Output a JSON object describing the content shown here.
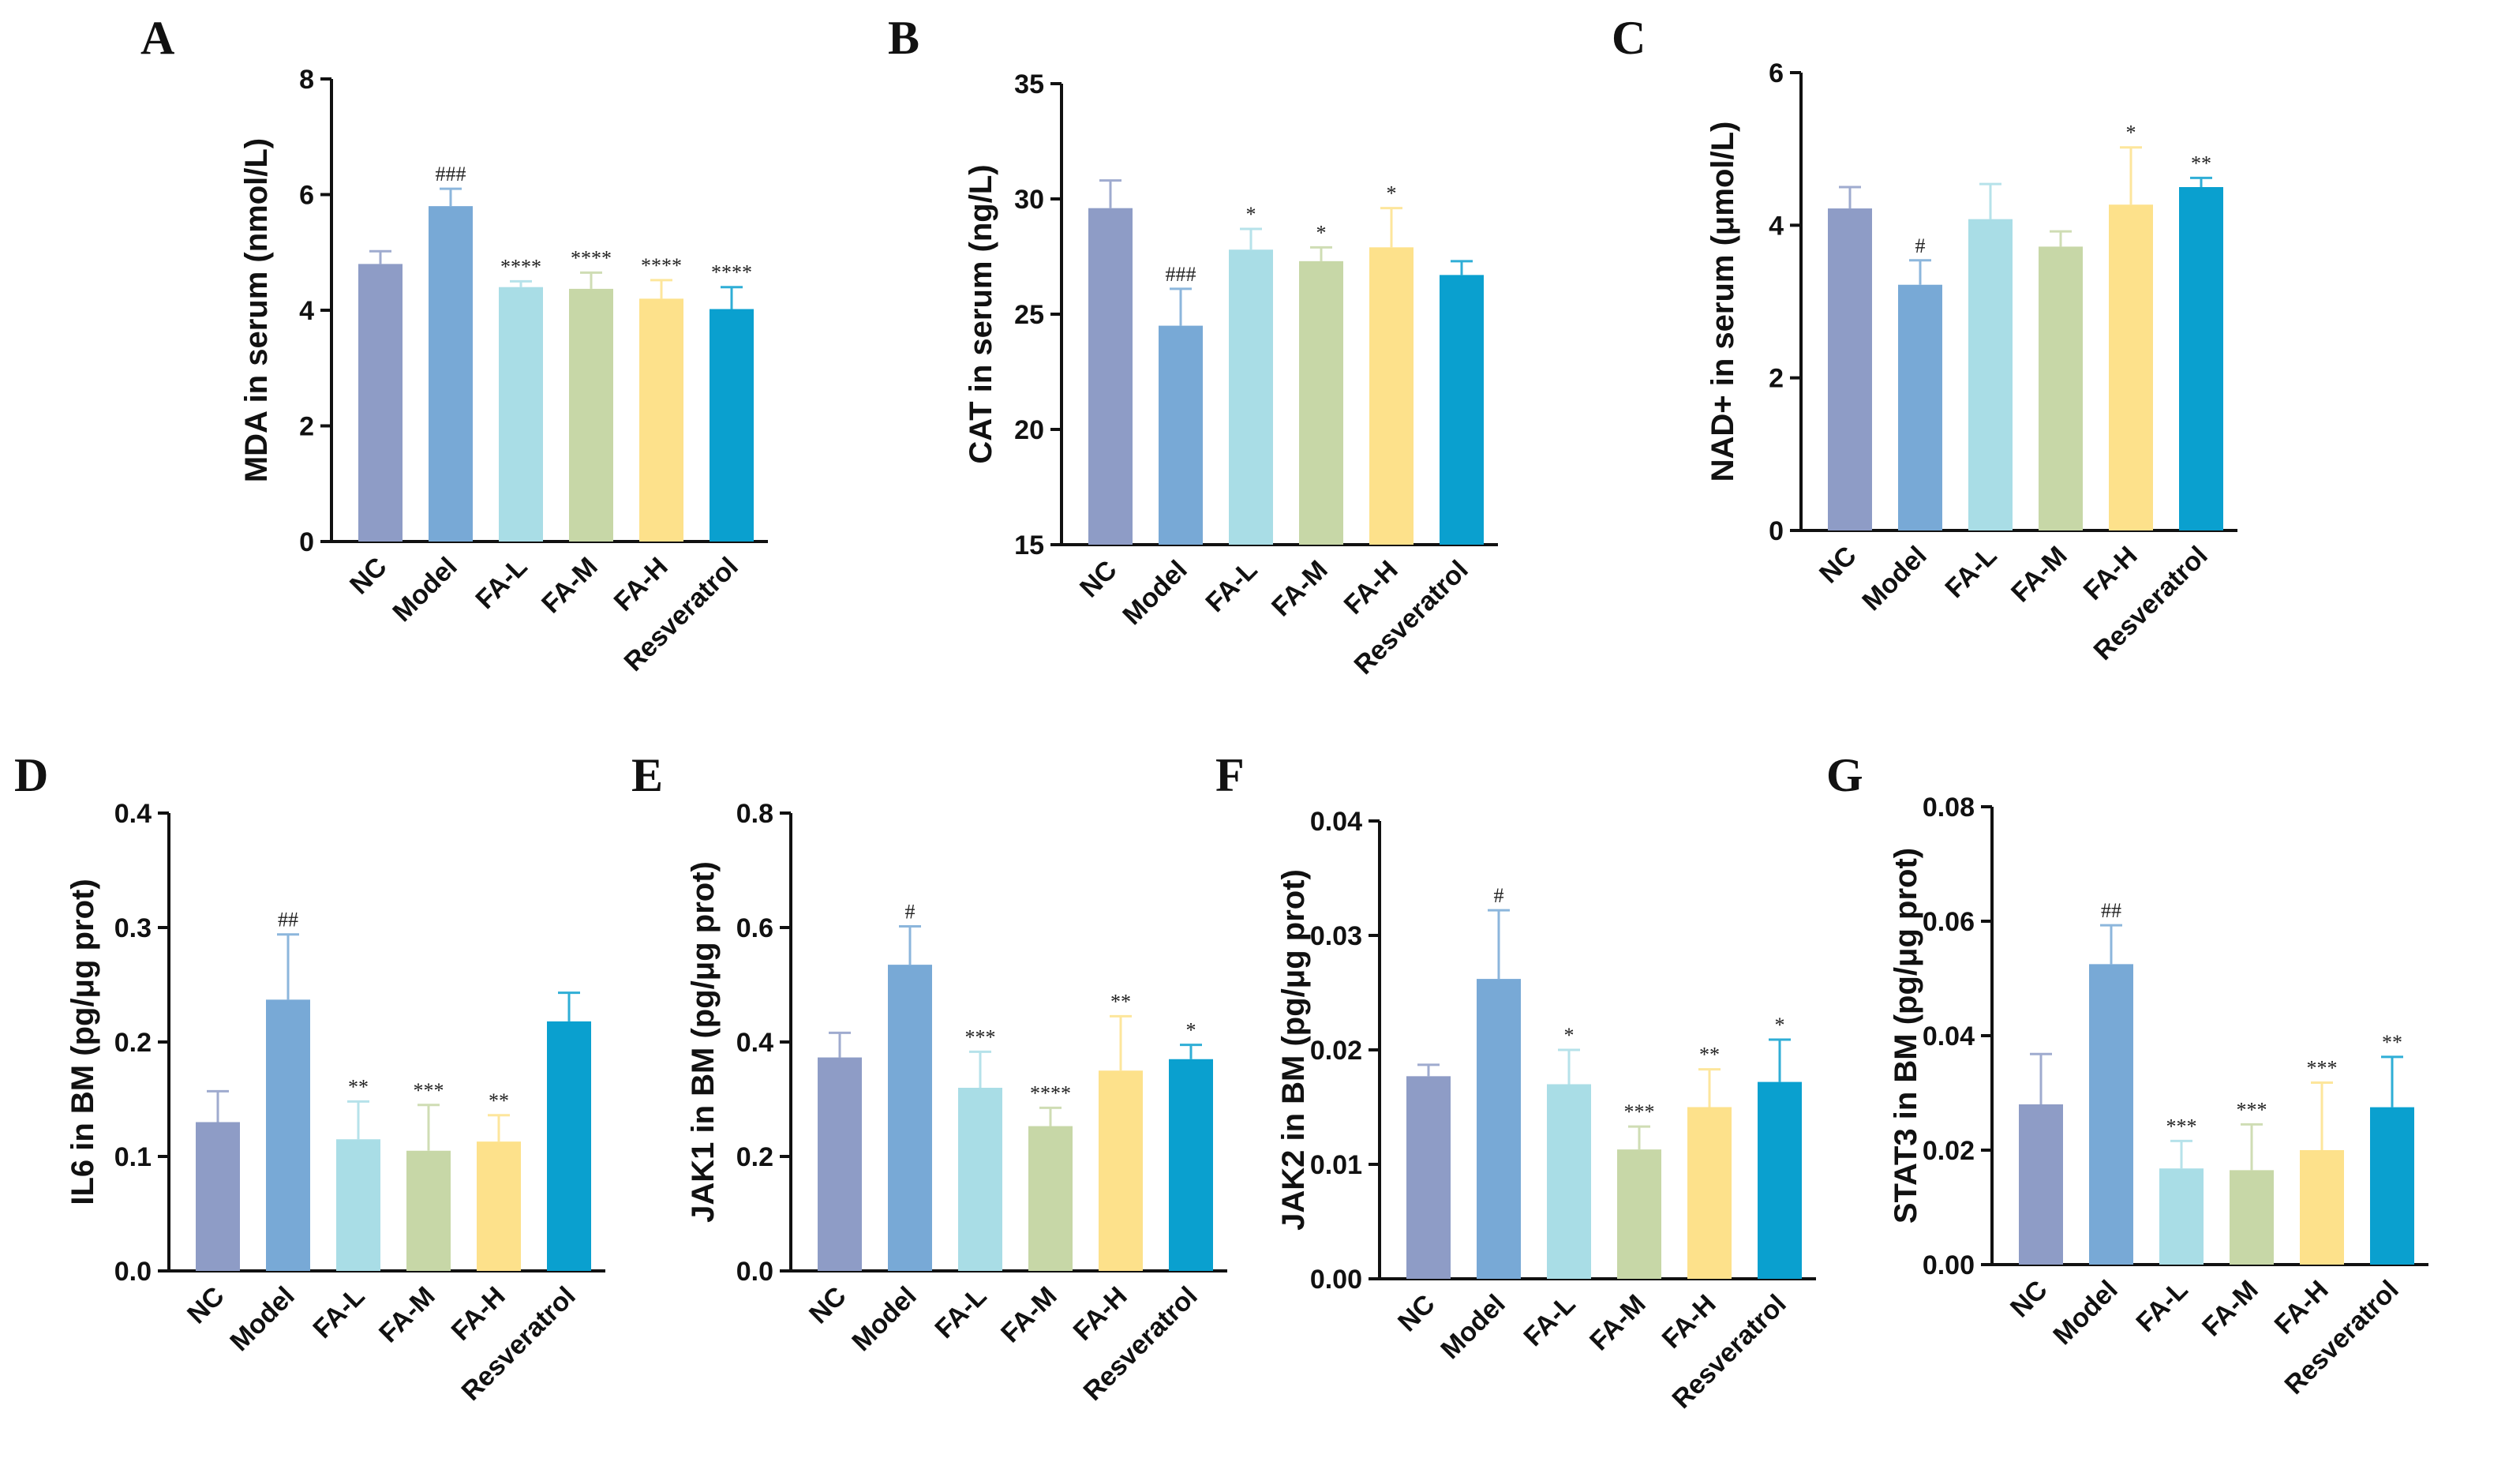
{
  "figure": {
    "panel_count": 7
  },
  "colors": [
    "#8E9CC6",
    "#78A9D6",
    "#A9DDE6",
    "#C7D7A7",
    "#FDE18B",
    "#0AA0CF"
  ],
  "chart_data": [
    {
      "type": "bar",
      "panel": "A",
      "ylabel": "MDA in serum (nmol/L)",
      "categories": [
        "NC",
        "Model",
        "FA-L",
        "FA-M",
        "FA-H",
        "Resveratrol"
      ],
      "values": [
        4.8,
        5.8,
        4.4,
        4.37,
        4.2,
        4.02
      ],
      "errors": [
        0.22,
        0.3,
        0.1,
        0.28,
        0.32,
        0.38
      ],
      "ylim": [
        0,
        8
      ],
      "ticks": [
        "0",
        "2",
        "4",
        "6",
        "8"
      ],
      "sig": [
        "",
        "###",
        "****",
        "****",
        "****",
        "****"
      ]
    },
    {
      "type": "bar",
      "panel": "B",
      "ylabel": "CAT in serum (ng/L)",
      "categories": [
        "NC",
        "Model",
        "FA-L",
        "FA-M",
        "FA-H",
        "Resveratrol"
      ],
      "values": [
        29.6,
        24.5,
        27.8,
        27.3,
        27.9,
        26.7
      ],
      "errors": [
        1.2,
        1.6,
        0.9,
        0.6,
        1.7,
        0.6
      ],
      "ylim": [
        15,
        35
      ],
      "ticks": [
        "15",
        "20",
        "25",
        "30",
        "35"
      ],
      "sig": [
        "",
        "###",
        "*",
        "*",
        "*",
        ""
      ]
    },
    {
      "type": "bar",
      "panel": "C",
      "ylabel": "NAD+ in serum (μmol/L)",
      "categories": [
        "NC",
        "Model",
        "FA-L",
        "FA-M",
        "FA-H",
        "Resveratrol"
      ],
      "values": [
        4.22,
        3.22,
        4.08,
        3.72,
        4.27,
        4.5
      ],
      "errors": [
        0.28,
        0.32,
        0.46,
        0.2,
        0.75,
        0.12
      ],
      "ylim": [
        0,
        6
      ],
      "ticks": [
        "0",
        "2",
        "4",
        "6"
      ],
      "sig": [
        "",
        "#",
        "",
        "",
        "*",
        "**"
      ]
    },
    {
      "type": "bar",
      "panel": "D",
      "ylabel": "IL6 in BM (pg/μg prot)",
      "categories": [
        "NC",
        "Model",
        "FA-L",
        "FA-M",
        "FA-H",
        "Resveratrol"
      ],
      "values": [
        0.13,
        0.237,
        0.115,
        0.105,
        0.113,
        0.218
      ],
      "errors": [
        0.027,
        0.057,
        0.033,
        0.04,
        0.023,
        0.025
      ],
      "ylim": [
        0,
        0.4
      ],
      "ticks": [
        "0.0",
        "0.1",
        "0.2",
        "0.3",
        "0.4"
      ],
      "sig": [
        "",
        "##",
        "**",
        "***",
        "**",
        ""
      ]
    },
    {
      "type": "bar",
      "panel": "E",
      "ylabel": "JAK1 in BM (pg/μg prot)",
      "categories": [
        "NC",
        "Model",
        "FA-L",
        "FA-M",
        "FA-H",
        "Resveratrol"
      ],
      "values": [
        0.373,
        0.535,
        0.32,
        0.253,
        0.35,
        0.37
      ],
      "errors": [
        0.043,
        0.067,
        0.063,
        0.032,
        0.095,
        0.025
      ],
      "ylim": [
        0,
        0.8
      ],
      "ticks": [
        "0.0",
        "0.2",
        "0.4",
        "0.6",
        "0.8"
      ],
      "sig": [
        "",
        "#",
        "***",
        "****",
        "**",
        "*"
      ]
    },
    {
      "type": "bar",
      "panel": "F",
      "ylabel": "JAK2 in BM (pg/μg prot)",
      "categories": [
        "NC",
        "Model",
        "FA-L",
        "FA-M",
        "FA-H",
        "Resveratrol"
      ],
      "values": [
        0.0177,
        0.0262,
        0.017,
        0.0113,
        0.015,
        0.0172
      ],
      "errors": [
        0.001,
        0.006,
        0.003,
        0.002,
        0.0033,
        0.0037
      ],
      "ylim": [
        0,
        0.04
      ],
      "ticks": [
        "0.00",
        "0.01",
        "0.02",
        "0.03",
        "0.04"
      ],
      "sig": [
        "",
        "#",
        "*",
        "***",
        "**",
        "*"
      ]
    },
    {
      "type": "bar",
      "panel": "G",
      "ylabel": "STAT3 in BM (pg/μg prot)",
      "categories": [
        "NC",
        "Model",
        "FA-L",
        "FA-M",
        "FA-H",
        "Resveratrol"
      ],
      "values": [
        0.028,
        0.0525,
        0.0168,
        0.0165,
        0.02,
        0.0275
      ],
      "errors": [
        0.0088,
        0.0068,
        0.0048,
        0.008,
        0.0118,
        0.0088
      ],
      "ylim": [
        0,
        0.08
      ],
      "ticks": [
        "0.00",
        "0.02",
        "0.04",
        "0.06",
        "0.08"
      ],
      "sig": [
        "",
        "##",
        "***",
        "***",
        "***",
        "**"
      ]
    }
  ]
}
